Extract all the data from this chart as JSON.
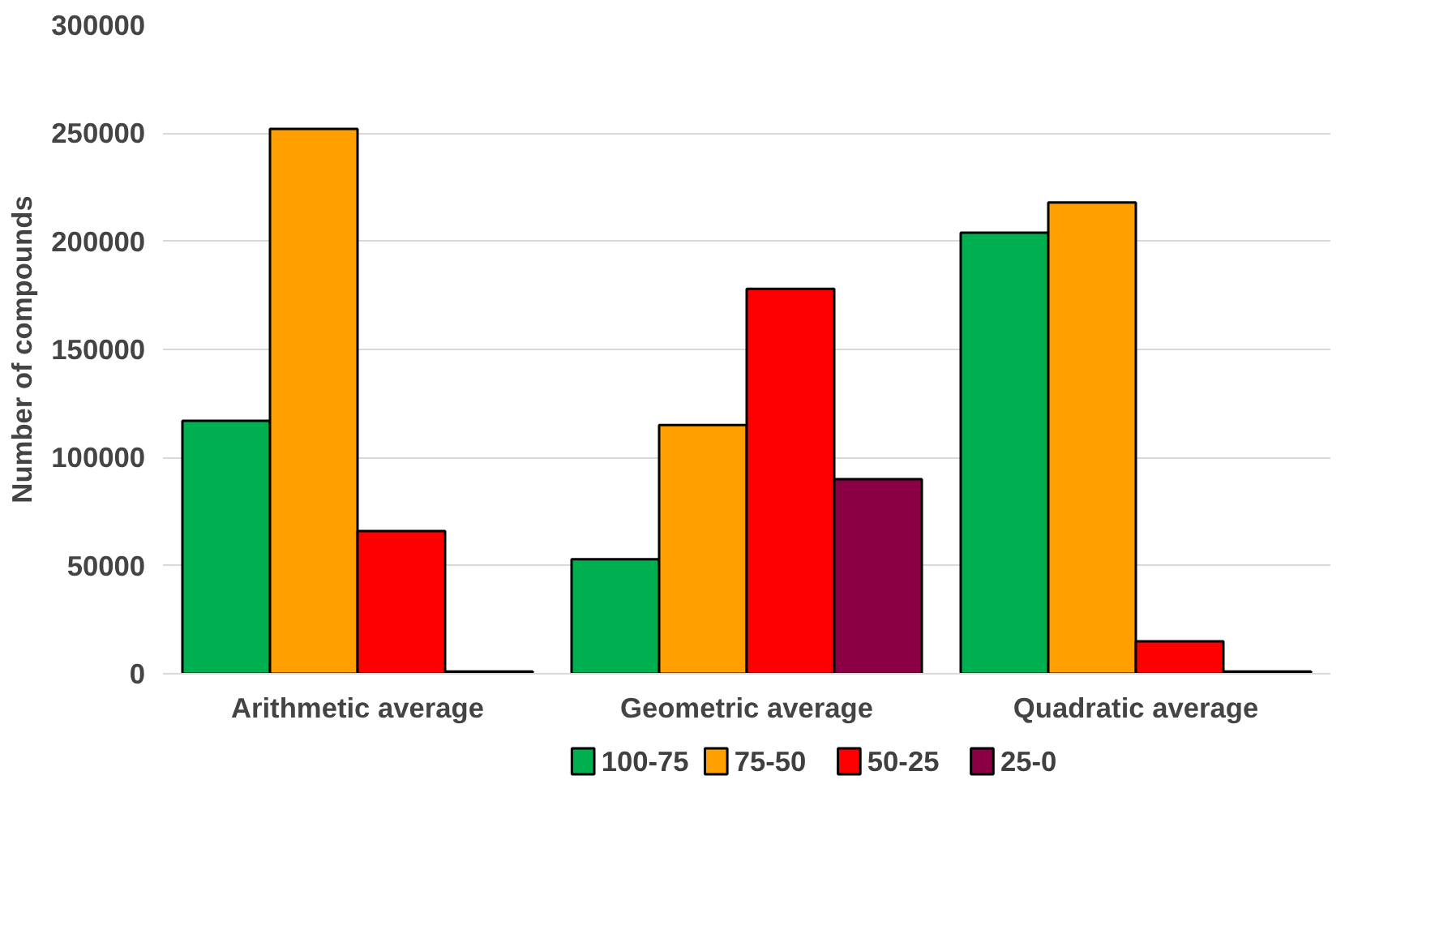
{
  "chart_data": {
    "type": "bar",
    "ylabel": "Number of compounds",
    "categories": [
      "Arithmetic average",
      "Geometric average",
      "Quadratic average"
    ],
    "series": [
      {
        "name": "100-75",
        "color": "#00b050",
        "values": [
          117000,
          53000,
          204000
        ]
      },
      {
        "name": "75-50",
        "color": "#ffa000",
        "values": [
          252000,
          115000,
          218000
        ]
      },
      {
        "name": "50-25",
        "color": "#ff0000",
        "values": [
          66000,
          178000,
          15000
        ]
      },
      {
        "name": "25-0",
        "color": "#8b0045",
        "values": [
          1000,
          90000,
          1000
        ]
      }
    ],
    "ylim": [
      0,
      300000
    ],
    "yticks": [
      0,
      50000,
      100000,
      150000,
      200000,
      250000,
      300000
    ],
    "grid": "y",
    "legend": "bottom"
  }
}
